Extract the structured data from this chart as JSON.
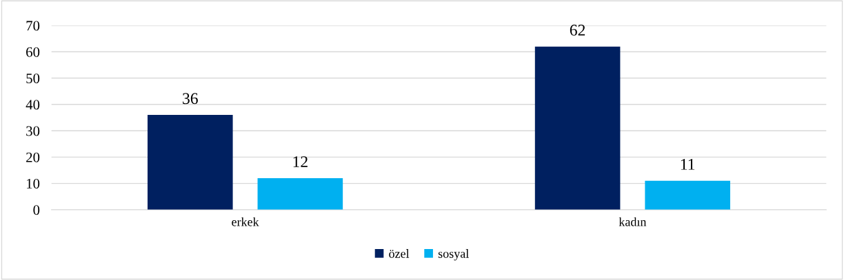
{
  "chart_data": {
    "type": "bar",
    "categories": [
      "erkek",
      "kadın"
    ],
    "series": [
      {
        "name": "özel",
        "color": "#002060",
        "values": [
          36,
          62
        ]
      },
      {
        "name": "sosyal",
        "color": "#00b0f0",
        "values": [
          12,
          11
        ]
      }
    ],
    "ylim": [
      0,
      70
    ],
    "yticks": [
      0,
      10,
      20,
      30,
      40,
      50,
      60,
      70
    ],
    "grid": "y",
    "legend": "bottom",
    "data_labels": true
  }
}
